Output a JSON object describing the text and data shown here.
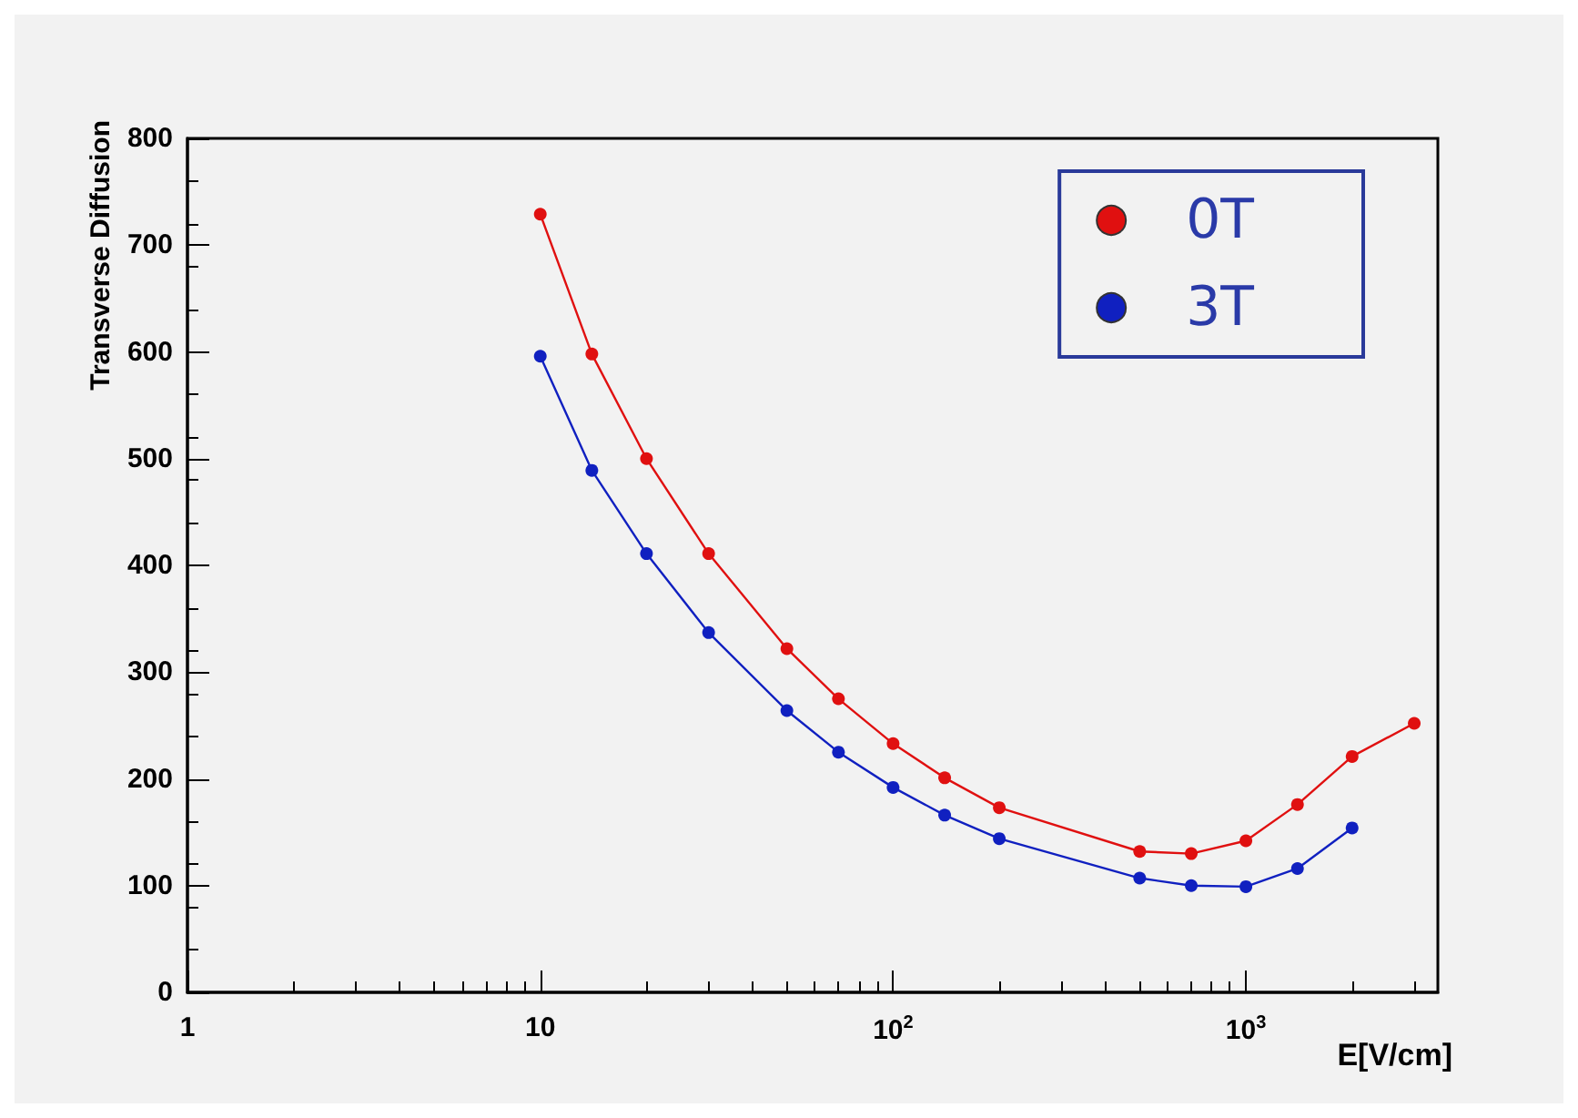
{
  "chart_data": {
    "type": "line",
    "xlabel": "E[V/cm]",
    "ylabel": "Transverse Diffusion",
    "log": "x",
    "xlim": [
      1,
      3500
    ],
    "ylim": [
      0,
      800
    ],
    "xticks": [
      1,
      10,
      {
        "value": 100,
        "label": "10$^{2}$"
      },
      {
        "value": 1000,
        "label": "10$^{3}$"
      }
    ],
    "yticks": [
      0,
      100,
      200,
      300,
      400,
      500,
      600,
      700,
      800
    ],
    "legend": "top right",
    "grid": false,
    "marker": "circle",
    "line_style": "solid",
    "series": [
      {
        "name": "0T",
        "color": "#e01010",
        "x": [
          10,
          14,
          20,
          30,
          50,
          70,
          100,
          140,
          200,
          500,
          700,
          1000,
          1400,
          2000,
          3000
        ],
        "values": [
          729,
          598,
          500,
          411,
          322,
          275,
          233,
          201,
          173,
          132,
          130,
          142,
          176,
          221,
          252
        ]
      },
      {
        "name": "3T",
        "color": "#1020c0",
        "x": [
          10,
          14,
          20,
          30,
          50,
          70,
          100,
          140,
          200,
          500,
          700,
          1000,
          1400,
          2000
        ],
        "values": [
          596,
          489,
          411,
          337,
          264,
          225,
          192,
          166,
          144,
          107,
          100,
          99,
          116,
          154
        ]
      }
    ]
  }
}
